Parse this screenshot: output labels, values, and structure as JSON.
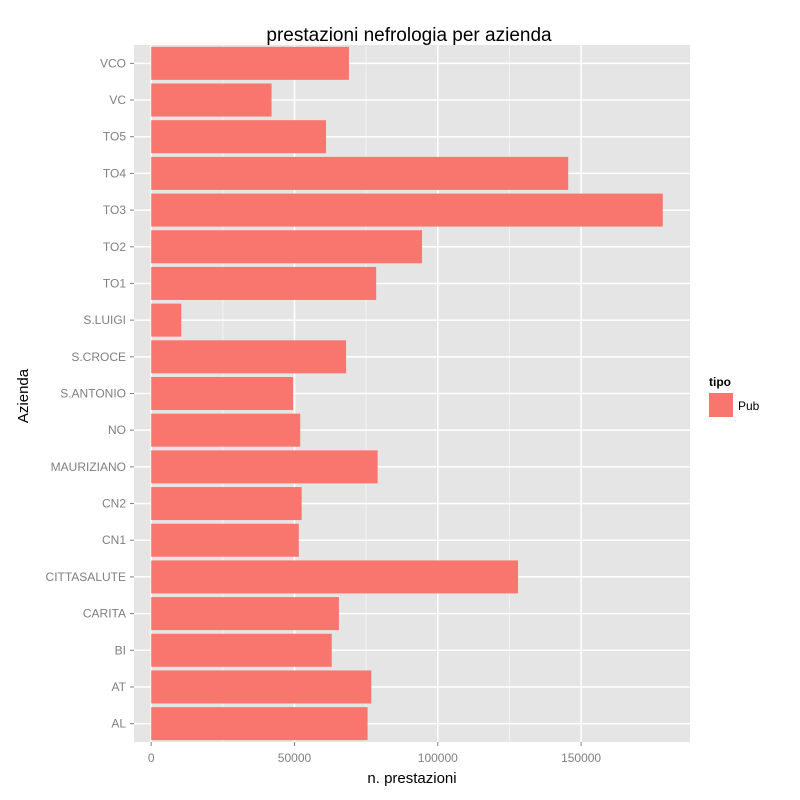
{
  "chart_data": {
    "type": "bar",
    "orientation": "horizontal",
    "title": "prestazioni nefrologia per azienda",
    "xlabel": "n. prestazioni",
    "ylabel": "Azienda",
    "categories": [
      "AL",
      "AT",
      "BI",
      "CARITA",
      "CITTASALUTE",
      "CN1",
      "CN2",
      "MAURIZIANO",
      "NO",
      "S.ANTONIO",
      "S.CROCE",
      "S.LUIGI",
      "TO1",
      "TO2",
      "TO3",
      "TO4",
      "TO5",
      "VC",
      "VCO"
    ],
    "series": [
      {
        "name": "Pub",
        "color": "#f8766d",
        "values": [
          75500,
          76800,
          63000,
          65500,
          128000,
          51500,
          52500,
          79000,
          52000,
          49500,
          68000,
          10500,
          78500,
          94500,
          178500,
          145500,
          61000,
          42000,
          69000
        ]
      }
    ],
    "xlim": [
      -6000,
      188000
    ],
    "xticks": [
      0,
      50000,
      100000,
      150000
    ],
    "xtick_labels": [
      "0",
      "50000",
      "100000",
      "150000"
    ],
    "grid": true,
    "background": "#e5e5e5",
    "legend": {
      "title": "tipo",
      "position": "right",
      "entries": [
        "Pub"
      ]
    }
  }
}
